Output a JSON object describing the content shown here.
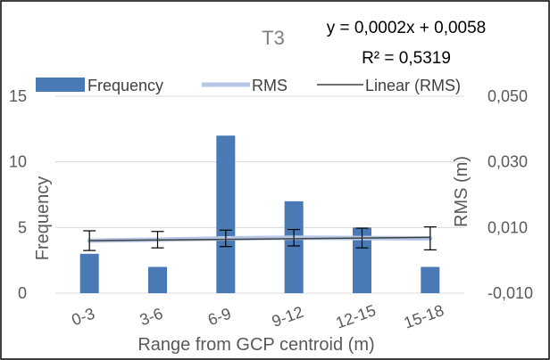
{
  "chart_data": {
    "type": "bar",
    "title": "T3",
    "categories": [
      "0-3",
      "3-6",
      "6-9",
      "9-12",
      "12-15",
      "15-18"
    ],
    "series": [
      {
        "name": "Frequency",
        "type": "bar",
        "axis": "left",
        "values": [
          3,
          2,
          12,
          7,
          5,
          2
        ]
      },
      {
        "name": "RMS",
        "type": "line",
        "axis": "right",
        "values": [
          0.006,
          0.0063,
          0.0067,
          0.0069,
          0.0068,
          0.0067
        ],
        "error": [
          0.003,
          0.0025,
          0.0025,
          0.0025,
          0.003,
          0.0035
        ]
      },
      {
        "name": "Linear (RMS)",
        "type": "trendline",
        "axis": "right",
        "slope": 0.0002,
        "intercept": 0.0058
      }
    ],
    "trendline_equation": "y = 0,0002x + 0,0058",
    "r_squared_label": "R² = 0,5319",
    "xlabel": "Range from GCP centroid (m)",
    "ylabel_left": "Frequency",
    "ylabel_right": "RMS (m)",
    "ylim_left": [
      0,
      15
    ],
    "yticks_left": [
      "0",
      "5",
      "10",
      "15"
    ],
    "ylim_right": [
      -0.01,
      0.05
    ],
    "yticks_right": [
      "-0,010",
      "0,010",
      "0,030",
      "0,050"
    ],
    "grid": true,
    "legend_position": "top",
    "colors": {
      "bar": "#4a7ab5",
      "rms": "#b4c7e7",
      "trend": "#404040"
    }
  }
}
